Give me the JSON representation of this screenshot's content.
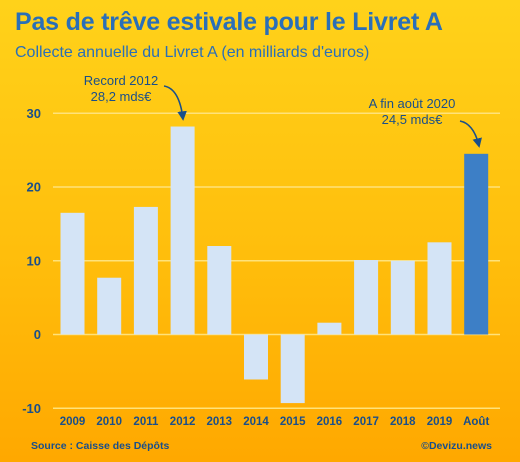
{
  "title": "Pas de trêve estivale pour le Livret A",
  "subtitle": "Collecte annuelle du Livret A (en milliards d'euros)",
  "source": "Source : Caisse des Dépôts",
  "credit": "©Devizu.news",
  "colors": {
    "bar": "#d4e4f6",
    "highlight": "#3d7fc6",
    "gridline": "#ffe27a",
    "text": "#1a4f8a"
  },
  "chart_data": {
    "type": "bar",
    "categories": [
      "2009",
      "2010",
      "2011",
      "2012",
      "2013",
      "2014",
      "2015",
      "2016",
      "2017",
      "2018",
      "2019",
      "Août"
    ],
    "values": [
      16.5,
      7.7,
      17.3,
      28.2,
      12.0,
      -6.1,
      -9.3,
      1.6,
      10.1,
      10.0,
      12.5,
      24.5
    ],
    "highlight_index": 11,
    "yticks": [
      -10,
      0,
      10,
      20,
      30
    ],
    "ylim": [
      -10,
      32
    ],
    "grid": true,
    "annotations": [
      {
        "category": "2012",
        "lines": [
          "Record 2012",
          "28,2 mds€"
        ]
      },
      {
        "category": "Août",
        "lines": [
          "A fin août 2020",
          "24,5 mds€"
        ]
      }
    ]
  }
}
